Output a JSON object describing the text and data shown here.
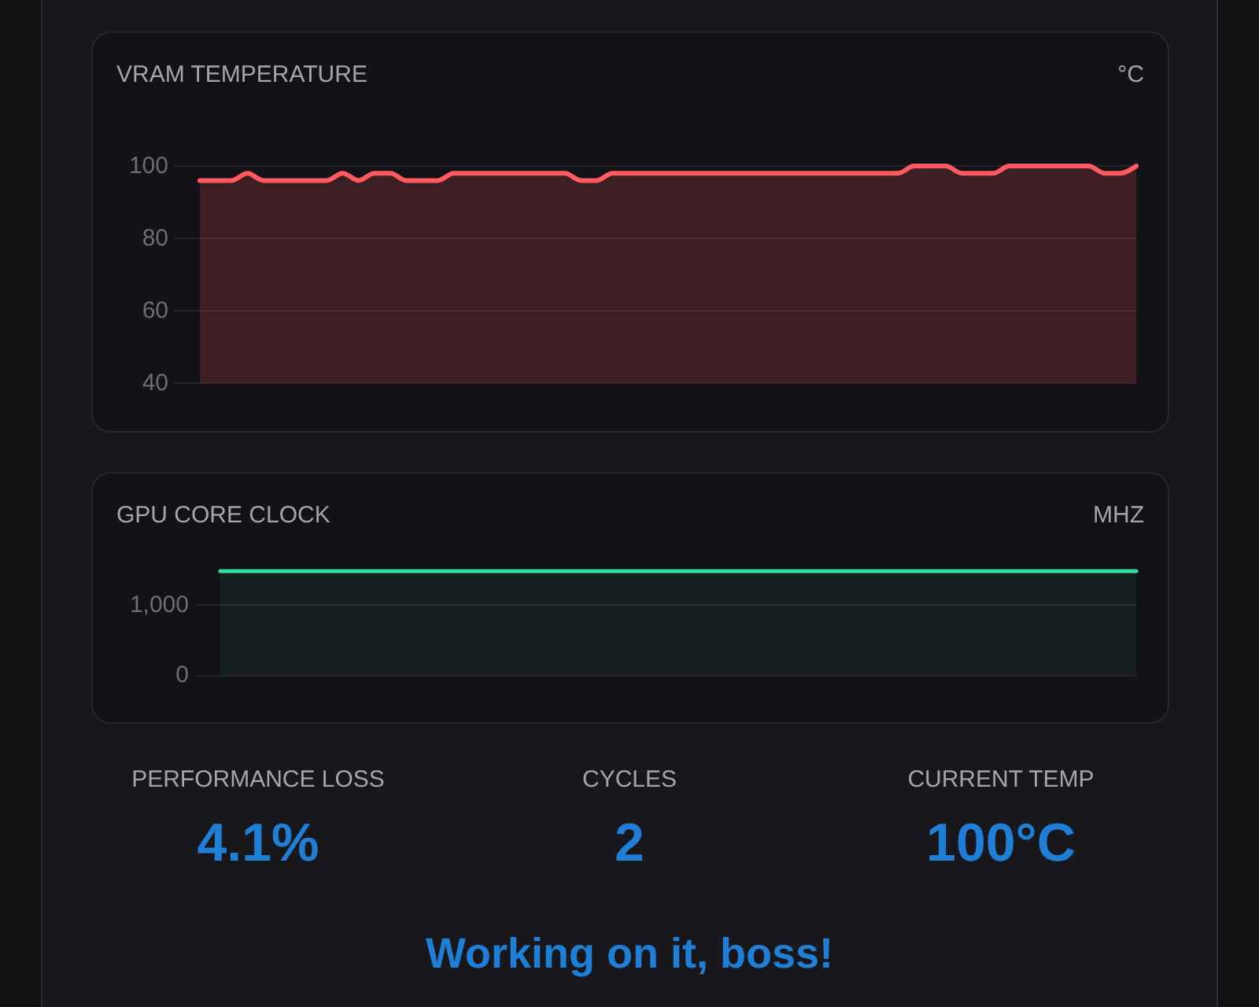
{
  "chart_data": [
    {
      "type": "area",
      "title": "VRAM TEMPERATURE",
      "ylabel": "°C",
      "categories": [
        null,
        null,
        null,
        null,
        null,
        null,
        null,
        null,
        null,
        null,
        null,
        null,
        null,
        null,
        null,
        null,
        null,
        null,
        null,
        null,
        null,
        null,
        null,
        null,
        null,
        null,
        null,
        null,
        null,
        null,
        null,
        null,
        null,
        null,
        null,
        null,
        null,
        null,
        null,
        null,
        null,
        null,
        null,
        null,
        null,
        null,
        null,
        null,
        null,
        null,
        null,
        null,
        null,
        null,
        null,
        null,
        null,
        null,
        null,
        null
      ],
      "series": [
        {
          "color": "#ff5a5f",
          "values": [
            96,
            96,
            96,
            98,
            96,
            96,
            96,
            96,
            96,
            98,
            96,
            98,
            98,
            96,
            96,
            96,
            98,
            98,
            98,
            98,
            98,
            98,
            98,
            98,
            96,
            96,
            98,
            98,
            98,
            98,
            98,
            98,
            98,
            98,
            98,
            98,
            98,
            98,
            98,
            98,
            98,
            98,
            98,
            98,
            98,
            100,
            100,
            100,
            98,
            98,
            98,
            100,
            100,
            100,
            100,
            100,
            100,
            98,
            98,
            100
          ]
        }
      ],
      "ylim": [
        40,
        100
      ],
      "yticks": [
        40,
        60,
        80,
        100
      ],
      "grid": "y",
      "tick_labels": "y"
    },
    {
      "type": "area",
      "title": "GPU CORE CLOCK",
      "ylabel": "MHZ",
      "categories": [
        null,
        null,
        null,
        null,
        null,
        null,
        null,
        null,
        null,
        null,
        null,
        null,
        null,
        null,
        null,
        null,
        null,
        null,
        null,
        null,
        null,
        null,
        null,
        null,
        null,
        null,
        null,
        null,
        null,
        null,
        null,
        null,
        null,
        null,
        null,
        null,
        null,
        null,
        null,
        null,
        null,
        null,
        null,
        null,
        null,
        null,
        null,
        null,
        null,
        null,
        null,
        null,
        null,
        null,
        null,
        null,
        null,
        null,
        null,
        null
      ],
      "series": [
        {
          "color": "#34e0a1",
          "values": [
            1490,
            1490,
            1490,
            1490,
            1490,
            1490,
            1490,
            1490,
            1490,
            1490,
            1490,
            1490,
            1490,
            1490,
            1490,
            1490,
            1490,
            1490,
            1490,
            1490,
            1490,
            1490,
            1490,
            1490,
            1490,
            1490,
            1490,
            1490,
            1490,
            1490,
            1490,
            1490,
            1490,
            1490,
            1490,
            1490,
            1490,
            1490,
            1490,
            1490,
            1490,
            1490,
            1490,
            1490,
            1490,
            1490,
            1490,
            1490,
            1490,
            1490,
            1490,
            1490,
            1490,
            1490,
            1490,
            1490,
            1490,
            1490,
            1490,
            1490
          ]
        }
      ],
      "ylim": [
        0,
        1500
      ],
      "yticks": [
        0,
        {
          "value": 1000,
          "label": "1,000"
        }
      ],
      "grid": "y",
      "tick_labels": "y"
    },
    {
      "type": "other",
      "annotations": [
        "PERFORMANCE LOSS",
        "4.1%",
        "CYCLES",
        "2",
        "CURRENT TEMP",
        "100°C",
        "Working on it, boss!"
      ]
    }
  ]
}
